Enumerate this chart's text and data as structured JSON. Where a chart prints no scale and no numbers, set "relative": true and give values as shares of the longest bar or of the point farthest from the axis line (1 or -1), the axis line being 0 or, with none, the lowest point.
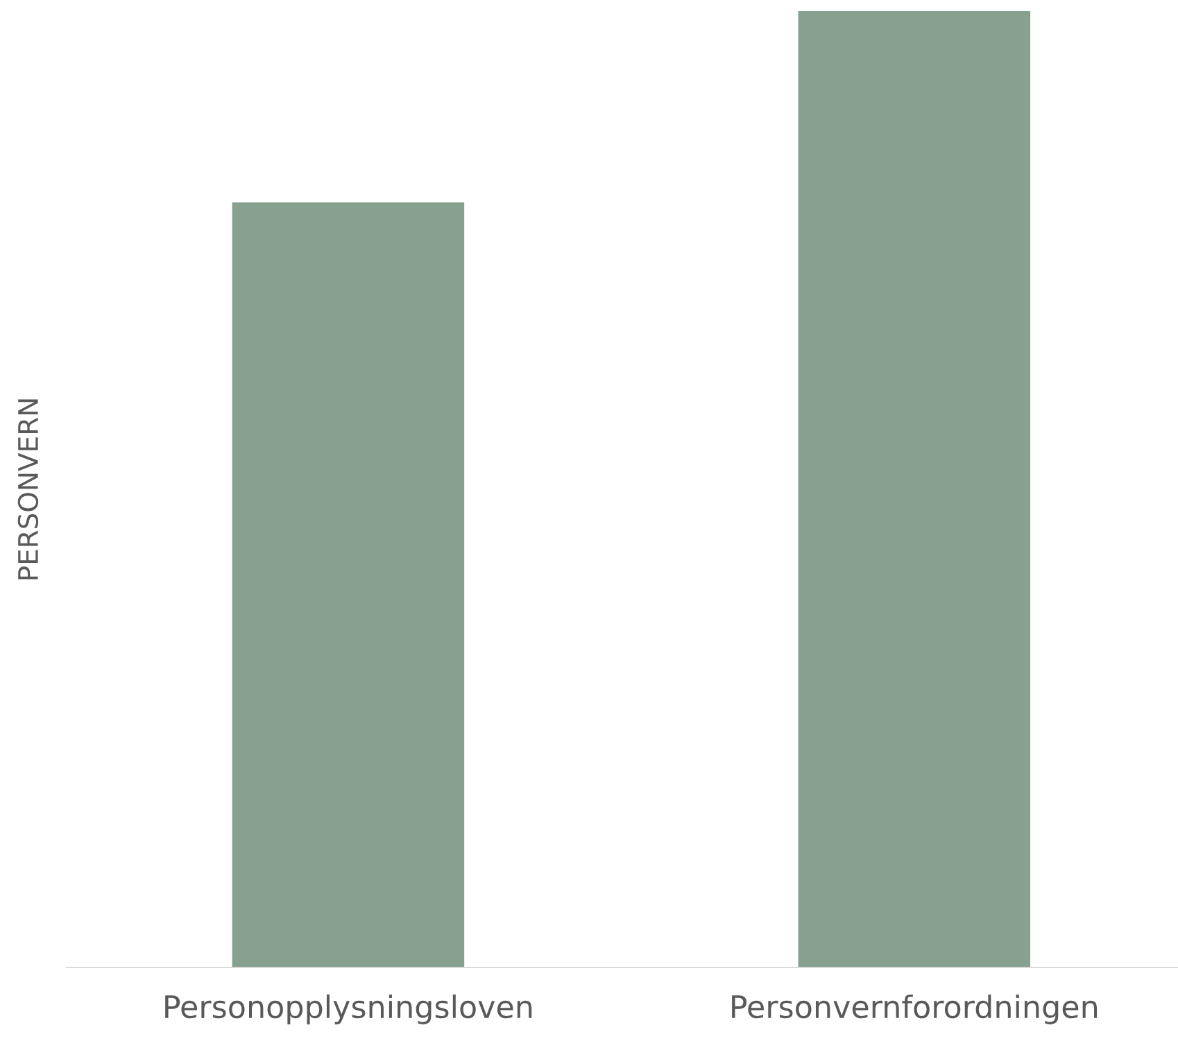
{
  "chart_data": {
    "type": "bar",
    "ylabel": "PERSONVERN",
    "relative": true,
    "categories": [
      "Personopplysningsloven",
      "Personvernforordningen"
    ],
    "values": [
      0.8,
      1
    ],
    "color": "#87a090"
  }
}
